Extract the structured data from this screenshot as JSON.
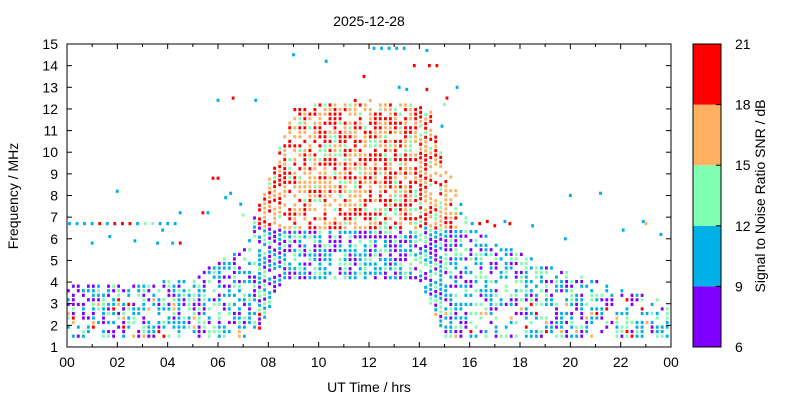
{
  "chart_data": {
    "type": "scatter",
    "title": "2025-12-28",
    "xlabel": "UT Time / hrs",
    "ylabel": "Frequency / MHz",
    "xlim": [
      0,
      24
    ],
    "ylim": [
      1,
      15
    ],
    "xticks": [
      "00",
      "02",
      "04",
      "06",
      "08",
      "10",
      "12",
      "14",
      "16",
      "18",
      "20",
      "22",
      "00"
    ],
    "yticks": [
      "1",
      "2",
      "3",
      "4",
      "5",
      "6",
      "7",
      "8",
      "9",
      "10",
      "11",
      "12",
      "13",
      "14",
      "15"
    ],
    "grid": false,
    "colorbar": {
      "label": "Signal to Noise Ratio SNR / dB",
      "ticks": [
        "6",
        "9",
        "12",
        "15",
        "18",
        "21"
      ],
      "bands": [
        {
          "from": 6,
          "to": 9,
          "color": "#7f00ff"
        },
        {
          "from": 9,
          "to": 12,
          "color": "#00b0e6"
        },
        {
          "from": 12,
          "to": 15,
          "color": "#80ffb0"
        },
        {
          "from": 15,
          "to": 18,
          "color": "#ffb060"
        },
        {
          "from": 18,
          "to": 21,
          "color": "#ff0000"
        }
      ]
    },
    "series_note": "points: [UT hour, frequency MHz, SNR dB] — sampled density of observed spots",
    "points": [
      [
        0.1,
        6.7,
        10
      ],
      [
        0.4,
        6.7,
        10
      ],
      [
        0.7,
        6.7,
        10
      ],
      [
        1.0,
        6.7,
        10
      ],
      [
        1.3,
        6.7,
        19
      ],
      [
        1.6,
        6.7,
        10
      ],
      [
        1.9,
        6.7,
        19
      ],
      [
        2.2,
        6.7,
        19
      ],
      [
        2.5,
        6.7,
        19
      ],
      [
        2.8,
        6.7,
        10
      ],
      [
        3.1,
        6.7,
        13
      ],
      [
        3.4,
        6.7,
        13
      ],
      [
        3.7,
        6.7,
        10
      ],
      [
        4.0,
        6.7,
        10
      ],
      [
        4.3,
        6.7,
        10
      ],
      [
        1.0,
        5.8,
        10
      ],
      [
        1.7,
        6.1,
        10
      ],
      [
        2.7,
        5.9,
        10
      ],
      [
        3.6,
        5.8,
        10
      ],
      [
        4.2,
        5.8,
        10
      ],
      [
        4.5,
        5.8,
        19
      ],
      [
        3.8,
        6.4,
        10
      ],
      [
        4.5,
        7.2,
        10
      ],
      [
        5.4,
        7.2,
        19
      ],
      [
        5.6,
        7.2,
        10
      ],
      [
        2.0,
        8.2,
        10
      ],
      [
        5.8,
        8.8,
        19
      ],
      [
        6.0,
        8.8,
        19
      ],
      [
        6.3,
        7.9,
        10
      ],
      [
        6.5,
        8.1,
        10
      ],
      [
        6.9,
        7.6,
        10
      ],
      [
        7.0,
        7.1,
        13
      ],
      [
        6.0,
        12.4,
        10
      ],
      [
        6.6,
        12.5,
        19
      ],
      [
        7.5,
        12.4,
        10
      ],
      [
        9.0,
        14.5,
        10
      ],
      [
        10.3,
        14.2,
        10
      ],
      [
        11.8,
        13.5,
        19
      ],
      [
        12.2,
        14.8,
        10
      ],
      [
        12.5,
        14.8,
        10
      ],
      [
        12.8,
        14.8,
        10
      ],
      [
        13.1,
        14.8,
        10
      ],
      [
        13.4,
        14.8,
        10
      ],
      [
        14.3,
        14.7,
        10
      ],
      [
        13.8,
        14.0,
        19
      ],
      [
        14.4,
        14.0,
        19
      ],
      [
        14.7,
        14.0,
        19
      ],
      [
        13.2,
        13.0,
        10
      ],
      [
        13.5,
        12.9,
        10
      ],
      [
        14.3,
        12.9,
        19
      ],
      [
        15.1,
        12.5,
        19
      ],
      [
        15.5,
        13.0,
        10
      ],
      [
        14.9,
        11.2,
        10
      ],
      [
        15.0,
        12.2,
        13
      ],
      [
        17.4,
        6.8,
        10
      ],
      [
        17.6,
        6.7,
        19
      ],
      [
        17.0,
        6.6,
        19
      ],
      [
        16.7,
        6.8,
        19
      ],
      [
        16.4,
        6.7,
        19
      ],
      [
        16.1,
        6.7,
        10
      ],
      [
        18.5,
        6.6,
        10
      ],
      [
        19.8,
        6.0,
        10
      ],
      [
        20.0,
        8.0,
        10
      ],
      [
        21.2,
        8.1,
        10
      ],
      [
        22.1,
        6.4,
        10
      ],
      [
        22.9,
        6.8,
        10
      ],
      [
        23.0,
        6.7,
        16
      ],
      [
        23.6,
        6.2,
        10
      ]
    ]
  }
}
